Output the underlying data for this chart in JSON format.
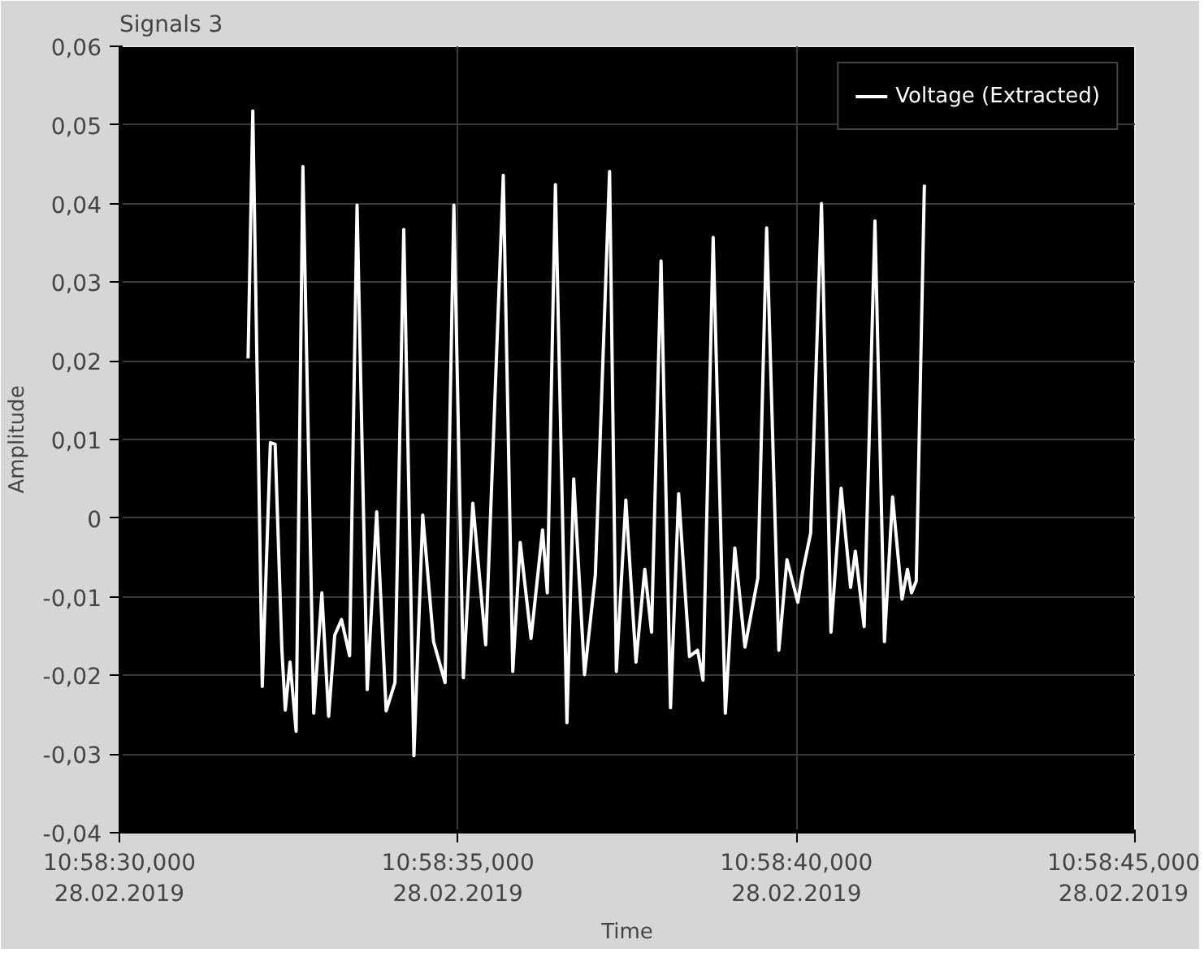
{
  "chart_data": {
    "type": "line",
    "title": "Signals 3",
    "xlabel": "Time",
    "ylabel": "Amplitude",
    "x": [
      "2019-02-28T10:58:31.90",
      "2019-02-28T10:58:31.97",
      "2019-02-28T10:58:32.11",
      "2019-02-28T10:58:32.23",
      "2019-02-28T10:58:32.30",
      "2019-02-28T10:58:32.40",
      "2019-02-28T10:58:32.45",
      "2019-02-28T10:58:32.52",
      "2019-02-28T10:58:32.61",
      "2019-02-28T10:58:32.71",
      "2019-02-28T10:58:32.87",
      "2019-02-28T10:58:32.99",
      "2019-02-28T10:58:33.09",
      "2019-02-28T10:58:33.18",
      "2019-02-28T10:58:33.28",
      "2019-02-28T10:58:33.40",
      "2019-02-28T10:58:33.51",
      "2019-02-28T10:58:33.66",
      "2019-02-28T10:58:33.80",
      "2019-02-28T10:58:33.94",
      "2019-02-28T10:58:34.07",
      "2019-02-28T10:58:34.20",
      "2019-02-28T10:58:34.35",
      "2019-02-28T10:58:34.48",
      "2019-02-28T10:58:34.64",
      "2019-02-28T10:58:34.81",
      "2019-02-28T10:58:34.94",
      "2019-02-28T10:58:35.08",
      "2019-02-28T10:58:35.22",
      "2019-02-28T10:58:35.41",
      "2019-02-28T10:58:35.67",
      "2019-02-28T10:58:35.81",
      "2019-02-28T10:58:35.92",
      "2019-02-28T10:58:36.08",
      "2019-02-28T10:58:36.25",
      "2019-02-28T10:58:36.32",
      "2019-02-28T10:58:36.44",
      "2019-02-28T10:58:36.61",
      "2019-02-28T10:58:36.71",
      "2019-02-28T10:58:36.87",
      "2019-02-28T10:58:37.03",
      "2019-02-28T10:58:37.24",
      "2019-02-28T10:58:37.34",
      "2019-02-28T10:58:37.48",
      "2019-02-28T10:58:37.63",
      "2019-02-28T10:58:37.76",
      "2019-02-28T10:58:37.86",
      "2019-02-28T10:58:38.00",
      "2019-02-28T10:58:38.14",
      "2019-02-28T10:58:38.26",
      "2019-02-28T10:58:38.42",
      "2019-02-28T10:58:38.54",
      "2019-02-28T10:58:38.62",
      "2019-02-28T10:58:38.77",
      "2019-02-28T10:58:38.95",
      "2019-02-28T10:58:39.09",
      "2019-02-28T10:58:39.24",
      "2019-02-28T10:58:39.43",
      "2019-02-28T10:58:39.56",
      "2019-02-28T10:58:39.74",
      "2019-02-28T10:58:39.86",
      "2019-02-28T10:58:40.02",
      "2019-02-28T10:58:40.09",
      "2019-02-28T10:58:40.21",
      "2019-02-28T10:58:40.37",
      "2019-02-28T10:58:40.51",
      "2019-02-28T10:58:40.66",
      "2019-02-28T10:58:40.80",
      "2019-02-28T10:58:40.87",
      "2019-02-28T10:58:41.00",
      "2019-02-28T10:58:41.16",
      "2019-02-28T10:58:41.30",
      "2019-02-28T10:58:41.42",
      "2019-02-28T10:58:41.56",
      "2019-02-28T10:58:41.64",
      "2019-02-28T10:58:41.70",
      "2019-02-28T10:58:41.77",
      "2019-02-28T10:58:41.89"
    ],
    "series": [
      {
        "name": "Voltage (Extracted)",
        "color": "#ffffff",
        "values": [
          0.0203,
          0.0518,
          -0.0214,
          0.0096,
          0.0094,
          -0.0168,
          -0.0244,
          -0.0183,
          -0.0271,
          0.0447,
          -0.0248,
          -0.0095,
          -0.0252,
          -0.0149,
          -0.0129,
          -0.0175,
          0.0398,
          -0.0218,
          0.0008,
          -0.0245,
          -0.0209,
          0.0367,
          -0.0302,
          0.0004,
          -0.0157,
          -0.0209,
          0.0398,
          -0.0203,
          0.0019,
          -0.0161,
          0.0436,
          -0.0195,
          -0.0031,
          -0.0153,
          -0.0015,
          -0.0095,
          0.0424,
          -0.026,
          0.005,
          -0.0199,
          -0.0072,
          0.0441,
          -0.0195,
          0.0023,
          -0.0183,
          -0.0065,
          -0.0145,
          0.0327,
          -0.0241,
          0.0031,
          -0.0176,
          -0.0168,
          -0.0206,
          0.0357,
          -0.0248,
          -0.0038,
          -0.0164,
          -0.0076,
          0.0369,
          -0.0168,
          -0.0053,
          -0.0107,
          -0.0069,
          -0.0019,
          0.04,
          -0.0145,
          0.0038,
          -0.0088,
          -0.0042,
          -0.0138,
          0.0378,
          -0.0157,
          0.0027,
          -0.0103,
          -0.0065,
          -0.0095,
          -0.008,
          0.0424
        ]
      }
    ],
    "xlim": [
      "2019-02-28T10:58:30",
      "2019-02-28T10:58:45"
    ],
    "xticks": [
      {
        "value": "2019-02-28T10:58:30",
        "label": "10:58:30,000\n28.02.2019"
      },
      {
        "value": "2019-02-28T10:58:35",
        "label": "10:58:35,000\n28.02.2019"
      },
      {
        "value": "2019-02-28T10:58:40",
        "label": "10:58:40,000\n28.02.2019"
      },
      {
        "value": "2019-02-28T10:58:45",
        "label": "10:58:45,000\n28.02.2019"
      }
    ],
    "ylim": [
      -0.04,
      0.06
    ],
    "yticks": [
      {
        "value": -0.04,
        "label": "-0,04"
      },
      {
        "value": -0.03,
        "label": "-0,03"
      },
      {
        "value": -0.02,
        "label": "-0,02"
      },
      {
        "value": -0.01,
        "label": "-0,01"
      },
      0,
      {
        "value": 0.01,
        "label": "0,01"
      },
      {
        "value": 0.02,
        "label": "0,02"
      },
      {
        "value": 0.03,
        "label": "0,03"
      },
      {
        "value": 0.04,
        "label": "0,04"
      },
      {
        "value": 0.05,
        "label": "0,05"
      },
      {
        "value": 0.06,
        "label": "0,06"
      }
    ],
    "grid": true,
    "legend": "top right",
    "marker": "none",
    "line_style": "solid"
  }
}
